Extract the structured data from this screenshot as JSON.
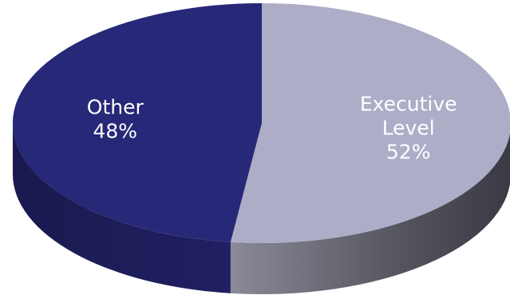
{
  "chart_data": {
    "type": "pie",
    "style": "3d",
    "slices": [
      {
        "label_lines": [
          "Executive",
          "Level"
        ],
        "value": 52,
        "value_label": "52%",
        "color": "#aeadc8",
        "side_color": "#5c5c68"
      },
      {
        "label_lines": [
          "Other"
        ],
        "value": 48,
        "value_label": "48%",
        "color": "#282878",
        "side_color": "#1c1c56"
      }
    ],
    "legend": "none"
  }
}
